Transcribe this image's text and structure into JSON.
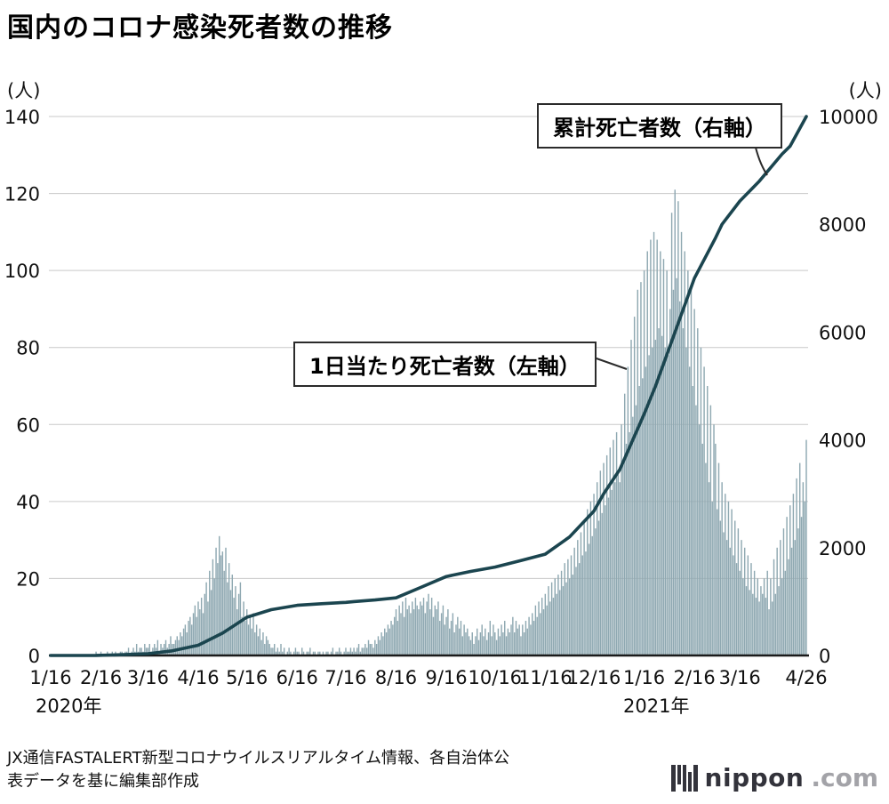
{
  "title": "国内のコロナ感染死者数の推移",
  "left_axis_unit": "(人)",
  "right_axis_unit": "(人)",
  "annotations": {
    "cumulative": "累計死亡者数（右軸）",
    "daily": "1日当たり死亡者数（左軸）"
  },
  "year_labels": {
    "y2020": "2020年",
    "y2021": "2021年"
  },
  "source_line1": "JX通信FASTALERT新型コロナウイルスリアルタイム情報、各自治体公",
  "source_line2": "表データを基に編集部作成",
  "logo": {
    "name": "nippon",
    "suffix": ".com"
  },
  "colors": {
    "bar": "#8ea8b1",
    "line": "#1b454f",
    "grid": "#c9c9c9",
    "axis": "#1a1a1a",
    "tick_text": "#111111"
  },
  "chart_data": {
    "type": "bar",
    "title": "国内のコロナ感染死者数の推移",
    "x_start_date": "2020-01-16",
    "x_end_date": "2021-04-26",
    "left_axis": {
      "label": "(人)",
      "ticks": [
        0,
        20,
        40,
        60,
        80,
        100,
        120,
        140
      ],
      "lim": [
        0,
        140
      ]
    },
    "right_axis": {
      "label": "(人)",
      "ticks": [
        0,
        2000,
        4000,
        6000,
        8000,
        10000
      ],
      "lim": [
        0,
        10000
      ]
    },
    "x_ticks": [
      {
        "day": 0,
        "label": "1/16"
      },
      {
        "day": 31,
        "label": "2/16"
      },
      {
        "day": 60,
        "label": "3/16"
      },
      {
        "day": 91,
        "label": "4/16"
      },
      {
        "day": 121,
        "label": "5/16"
      },
      {
        "day": 152,
        "label": "6/16"
      },
      {
        "day": 182,
        "label": "7/16"
      },
      {
        "day": 213,
        "label": "8/16"
      },
      {
        "day": 244,
        "label": "9/16"
      },
      {
        "day": 274,
        "label": "10/16"
      },
      {
        "day": 305,
        "label": "11/16"
      },
      {
        "day": 335,
        "label": "12/16"
      },
      {
        "day": 366,
        "label": "1/16"
      },
      {
        "day": 397,
        "label": "2/16"
      },
      {
        "day": 425,
        "label": "3/16"
      },
      {
        "day": 466,
        "label": "4/26"
      }
    ],
    "series": [
      {
        "name": "1日当たり死亡者数",
        "axis": "left",
        "type": "bar",
        "values": [
          0,
          0,
          0,
          0,
          0,
          0,
          0,
          0,
          0,
          0,
          0,
          0,
          0,
          0,
          0,
          0,
          0,
          0,
          0,
          0,
          0,
          0,
          0,
          0,
          0,
          0,
          0,
          0,
          1,
          0,
          0,
          1,
          0,
          0,
          0,
          1,
          0,
          0,
          1,
          0,
          1,
          0,
          0,
          1,
          1,
          0,
          1,
          1,
          2,
          0,
          1,
          2,
          1,
          3,
          1,
          2,
          2,
          1,
          3,
          2,
          2,
          3,
          1,
          2,
          3,
          2,
          4,
          1,
          3,
          2,
          3,
          4,
          2,
          3,
          5,
          3,
          3,
          4,
          5,
          4,
          6,
          5,
          7,
          8,
          6,
          9,
          10,
          8,
          11,
          13,
          10,
          14,
          12,
          15,
          11,
          16,
          19,
          14,
          22,
          17,
          25,
          20,
          28,
          24,
          31,
          26,
          27,
          22,
          28,
          19,
          24,
          17,
          21,
          15,
          18,
          12,
          16,
          19,
          10,
          14,
          9,
          12,
          8,
          10,
          7,
          11,
          6,
          8,
          5,
          7,
          4,
          6,
          3,
          5,
          4,
          3,
          2,
          2,
          3,
          1,
          2,
          1,
          3,
          1,
          2,
          0,
          1,
          2,
          1,
          0,
          1,
          2,
          1,
          1,
          0,
          2,
          1,
          0,
          1,
          1,
          2,
          0,
          1,
          1,
          0,
          1,
          1,
          0,
          1,
          0,
          1,
          1,
          0,
          1,
          2,
          0,
          1,
          1,
          2,
          1,
          0,
          1,
          2,
          1,
          1,
          2,
          1,
          2,
          1,
          2,
          3,
          1,
          2,
          2,
          3,
          2,
          4,
          3,
          3,
          2,
          4,
          3,
          5,
          4,
          6,
          5,
          7,
          6,
          8,
          7,
          9,
          8,
          10,
          12,
          9,
          13,
          11,
          14,
          10,
          15,
          12,
          13,
          11,
          14,
          12,
          15,
          13,
          12,
          14,
          13,
          15,
          11,
          14,
          16,
          12,
          15,
          10,
          13,
          12,
          14,
          9,
          11,
          13,
          8,
          10,
          12,
          7,
          9,
          11,
          6,
          8,
          10,
          7,
          9,
          5,
          8,
          6,
          7,
          5,
          4,
          6,
          3,
          5,
          7,
          4,
          6,
          8,
          5,
          7,
          4,
          6,
          9,
          5,
          8,
          6,
          4,
          7,
          5,
          8,
          6,
          9,
          5,
          7,
          6,
          8,
          10,
          6,
          9,
          7,
          8,
          5,
          8,
          6,
          9,
          7,
          10,
          8,
          11,
          9,
          13,
          10,
          14,
          11,
          15,
          12,
          16,
          13,
          18,
          14,
          19,
          15,
          20,
          16,
          21,
          17,
          22,
          18,
          24,
          19,
          25,
          20,
          26,
          21,
          28,
          23,
          30,
          24,
          32,
          26,
          35,
          27,
          38,
          29,
          40,
          31,
          42,
          33,
          45,
          35,
          48,
          37,
          50,
          39,
          52,
          41,
          54,
          43,
          56,
          45,
          58,
          47,
          45,
          60,
          50,
          68,
          55,
          75,
          58,
          82,
          62,
          88,
          65,
          95,
          70,
          97,
          72,
          100,
          75,
          105,
          78,
          108,
          80,
          110,
          82,
          108,
          85,
          105,
          83,
          103,
          80,
          100,
          78,
          90,
          115,
          95,
          121,
          98,
          118,
          92,
          110,
          85,
          105,
          80,
          100,
          75,
          95,
          70,
          90,
          65,
          85,
          60,
          80,
          55,
          75,
          50,
          70,
          45,
          65,
          40,
          60,
          55,
          38,
          50,
          35,
          45,
          32,
          42,
          30,
          40,
          28,
          38,
          26,
          35,
          24,
          33,
          22,
          30,
          20,
          28,
          18,
          26,
          17,
          24,
          16,
          22,
          15,
          20,
          14,
          18,
          16,
          20,
          15,
          22,
          12,
          20,
          14,
          25,
          16,
          28,
          18,
          30,
          20,
          33,
          22,
          36,
          25,
          39,
          28,
          42,
          30,
          46,
          33,
          50,
          36,
          45,
          40,
          56
        ]
      },
      {
        "name": "累計死亡者数",
        "axis": "right",
        "type": "line",
        "points": [
          [
            0,
            0
          ],
          [
            28,
            1
          ],
          [
            45,
            15
          ],
          [
            60,
            33
          ],
          [
            75,
            85
          ],
          [
            91,
            190
          ],
          [
            106,
            415
          ],
          [
            121,
            710
          ],
          [
            136,
            850
          ],
          [
            152,
            930
          ],
          [
            167,
            960
          ],
          [
            182,
            985
          ],
          [
            187,
            1000
          ],
          [
            200,
            1030
          ],
          [
            213,
            1070
          ],
          [
            228,
            1260
          ],
          [
            244,
            1465
          ],
          [
            259,
            1560
          ],
          [
            274,
            1640
          ],
          [
            290,
            1760
          ],
          [
            305,
            1880
          ],
          [
            320,
            2200
          ],
          [
            335,
            2680
          ],
          [
            341,
            3000
          ],
          [
            351,
            3450
          ],
          [
            366,
            4480
          ],
          [
            373,
            5000
          ],
          [
            385,
            6000
          ],
          [
            397,
            7000
          ],
          [
            410,
            7750
          ],
          [
            414,
            8000
          ],
          [
            425,
            8430
          ],
          [
            437,
            8800
          ],
          [
            451,
            9300
          ],
          [
            456,
            9450
          ],
          [
            466,
            10000
          ]
        ]
      }
    ],
    "grid": true,
    "legend_position": "annotation-callouts"
  }
}
